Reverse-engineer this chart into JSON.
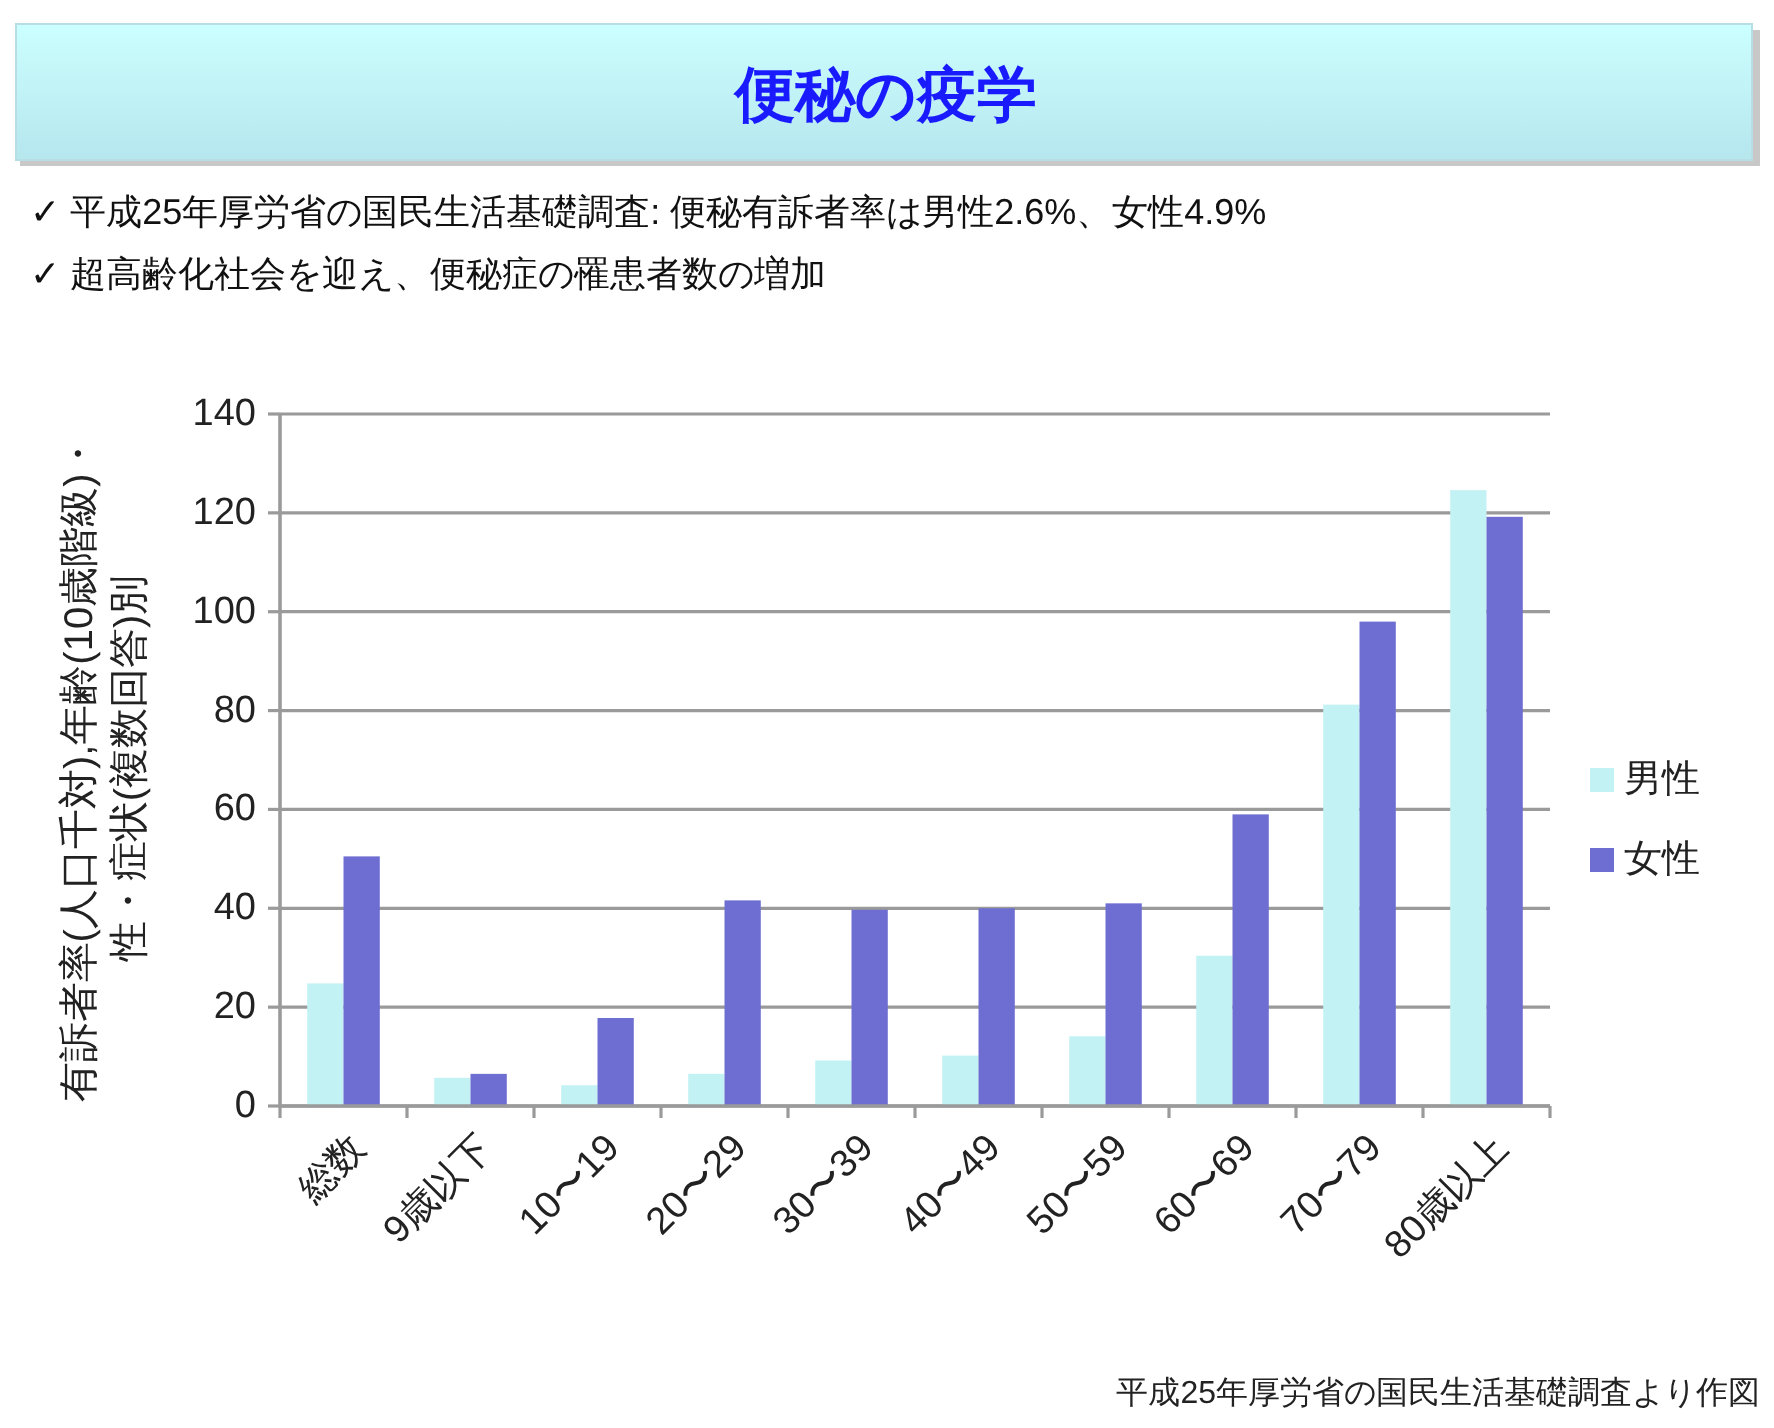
{
  "chart_data": {
    "type": "bar",
    "title": "便秘の疫学",
    "annotations": [
      "✓ 平成25年厚労省の国民生活基礎調査: 便秘有訴者率は男性2.6%、女性4.9%",
      "✓ 超高齢化社会を迎え、便秘症の罹患者数の増加",
      "平成25年厚労省の国民生活基礎調査より作図"
    ],
    "ylabel": "有訴者率(人口千対),年齢(10歳階級)・性・症状(複数回答)別",
    "categories": [
      "総数",
      "9歳以下",
      "10〜19",
      "20〜29",
      "30〜39",
      "40〜49",
      "50〜59",
      "60〜69",
      "70〜79",
      "80歳以上"
    ],
    "series": [
      {
        "name": "男性",
        "color": "#c2f2f4",
        "values": [
          24.8,
          5.7,
          4.2,
          6.5,
          9.2,
          10.2,
          14.1,
          30.4,
          81.2,
          124.6
        ]
      },
      {
        "name": "女性",
        "color": "#6e6ed2",
        "values": [
          50.5,
          6.5,
          17.8,
          41.6,
          39.7,
          40.0,
          41.0,
          59.0,
          98.0,
          119.2
        ]
      }
    ],
    "ylim": [
      0,
      140
    ],
    "yticks": [
      0,
      20,
      40,
      60,
      80,
      100,
      120,
      140
    ],
    "grid": "y",
    "legend": "right"
  }
}
